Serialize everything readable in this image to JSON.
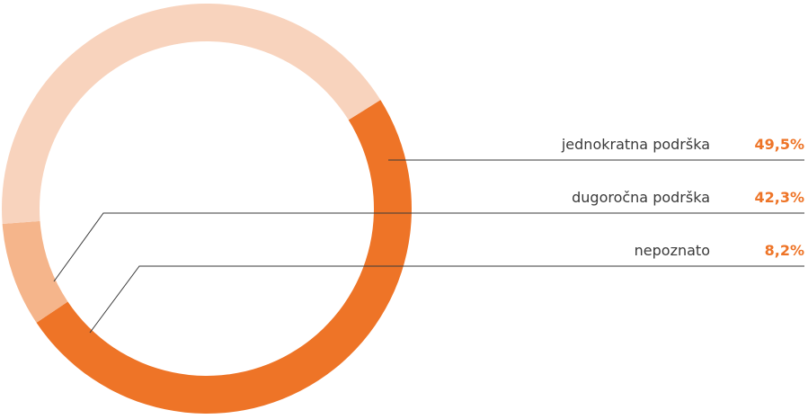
{
  "chart_data": {
    "type": "pie",
    "categories": [
      "jednokratna podrška",
      "dugoročna podrška",
      "nepoznato"
    ],
    "values": [
      49.5,
      42.3,
      8.2
    ],
    "value_labels": [
      "49,5%",
      "42,3%",
      "8,2%"
    ],
    "colors": [
      "#ee7427",
      "#f8d3bd",
      "#f5b58b"
    ]
  }
}
